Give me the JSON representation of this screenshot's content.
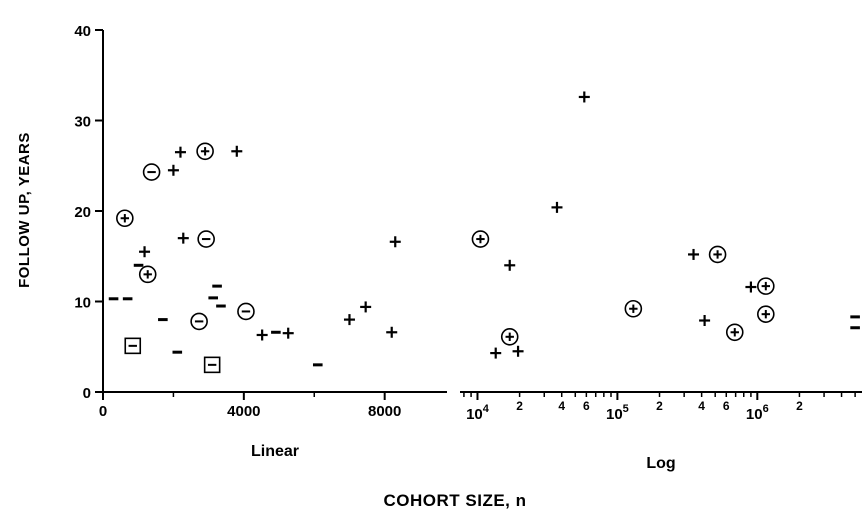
{
  "figure": {
    "background": "#ffffff",
    "ink": "#000000"
  },
  "chart_data": {
    "type": "scatter",
    "title": "",
    "ylabel": "FOLLOW UP, YEARS",
    "xlabel": "COHORT SIZE, n",
    "ylim": [
      0,
      40
    ],
    "yticks": [
      0,
      10,
      20,
      30,
      40
    ],
    "grid": false,
    "legend": false,
    "marker_types": {
      "plus": "+",
      "minus": "-",
      "circle-plus": "circled plus",
      "circle-minus": "circled minus",
      "box-minus": "boxed minus"
    },
    "panels": [
      {
        "name": "Linear",
        "scale": "linear",
        "xlim": [
          0,
          9770
        ],
        "xticks_major": [
          0,
          4000,
          8000
        ],
        "xticks_minor": [
          2000,
          6000
        ],
        "points": [
          {
            "x": 620,
            "y": 19.2,
            "m": "circle-plus"
          },
          {
            "x": 1180,
            "y": 15.5,
            "m": "plus"
          },
          {
            "x": 1010,
            "y": 14.0,
            "m": "minus"
          },
          {
            "x": 1380,
            "y": 24.3,
            "m": "circle-minus"
          },
          {
            "x": 2000,
            "y": 24.5,
            "m": "plus"
          },
          {
            "x": 2200,
            "y": 26.5,
            "m": "plus"
          },
          {
            "x": 2900,
            "y": 26.6,
            "m": "circle-plus"
          },
          {
            "x": 3800,
            "y": 26.6,
            "m": "plus"
          },
          {
            "x": 2280,
            "y": 17.0,
            "m": "plus"
          },
          {
            "x": 2930,
            "y": 16.9,
            "m": "circle-minus"
          },
          {
            "x": 1270,
            "y": 13.0,
            "m": "circle-plus"
          },
          {
            "x": 300,
            "y": 10.3,
            "m": "minus"
          },
          {
            "x": 700,
            "y": 10.3,
            "m": "minus"
          },
          {
            "x": 3240,
            "y": 11.7,
            "m": "minus"
          },
          {
            "x": 3130,
            "y": 10.4,
            "m": "minus"
          },
          {
            "x": 3350,
            "y": 9.5,
            "m": "minus"
          },
          {
            "x": 4060,
            "y": 8.9,
            "m": "circle-minus"
          },
          {
            "x": 1700,
            "y": 8.0,
            "m": "minus"
          },
          {
            "x": 2730,
            "y": 7.8,
            "m": "circle-minus"
          },
          {
            "x": 4520,
            "y": 6.3,
            "m": "plus"
          },
          {
            "x": 4910,
            "y": 6.6,
            "m": "minus"
          },
          {
            "x": 5260,
            "y": 6.5,
            "m": "plus"
          },
          {
            "x": 845,
            "y": 5.1,
            "m": "box-minus"
          },
          {
            "x": 2110,
            "y": 4.4,
            "m": "minus"
          },
          {
            "x": 3100,
            "y": 3.0,
            "m": "box-minus"
          },
          {
            "x": 6100,
            "y": 3.0,
            "m": "minus"
          },
          {
            "x": 7000,
            "y": 8.0,
            "m": "plus"
          },
          {
            "x": 7460,
            "y": 9.4,
            "m": "plus"
          },
          {
            "x": 8300,
            "y": 16.6,
            "m": "plus"
          },
          {
            "x": 8200,
            "y": 6.6,
            "m": "plus"
          }
        ]
      },
      {
        "name": "Log",
        "scale": "log",
        "xlim": [
          7500,
          5600000
        ],
        "xticks_major": [
          10000,
          100000,
          1000000
        ],
        "xticks_minor_labeled": [
          20000,
          40000,
          60000,
          200000,
          400000,
          600000,
          2000000
        ],
        "points": [
          {
            "x": 10500,
            "y": 16.9,
            "m": "circle-plus"
          },
          {
            "x": 17000,
            "y": 14.0,
            "m": "plus"
          },
          {
            "x": 13500,
            "y": 4.3,
            "m": "plus"
          },
          {
            "x": 19500,
            "y": 4.5,
            "m": "plus"
          },
          {
            "x": 17000,
            "y": 6.1,
            "m": "circle-plus"
          },
          {
            "x": 37000,
            "y": 20.4,
            "m": "plus"
          },
          {
            "x": 58000,
            "y": 32.6,
            "m": "plus"
          },
          {
            "x": 130000,
            "y": 9.2,
            "m": "circle-plus"
          },
          {
            "x": 350000,
            "y": 15.2,
            "m": "plus"
          },
          {
            "x": 520000,
            "y": 15.2,
            "m": "circle-plus"
          },
          {
            "x": 420000,
            "y": 7.9,
            "m": "plus"
          },
          {
            "x": 690000,
            "y": 6.6,
            "m": "circle-plus"
          },
          {
            "x": 900000,
            "y": 11.6,
            "m": "plus"
          },
          {
            "x": 1150000,
            "y": 11.7,
            "m": "circle-plus"
          },
          {
            "x": 1150000,
            "y": 8.6,
            "m": "circle-plus"
          },
          {
            "x": 5000000,
            "y": 8.3,
            "m": "minus"
          },
          {
            "x": 5000000,
            "y": 7.1,
            "m": "minus"
          }
        ]
      }
    ]
  }
}
